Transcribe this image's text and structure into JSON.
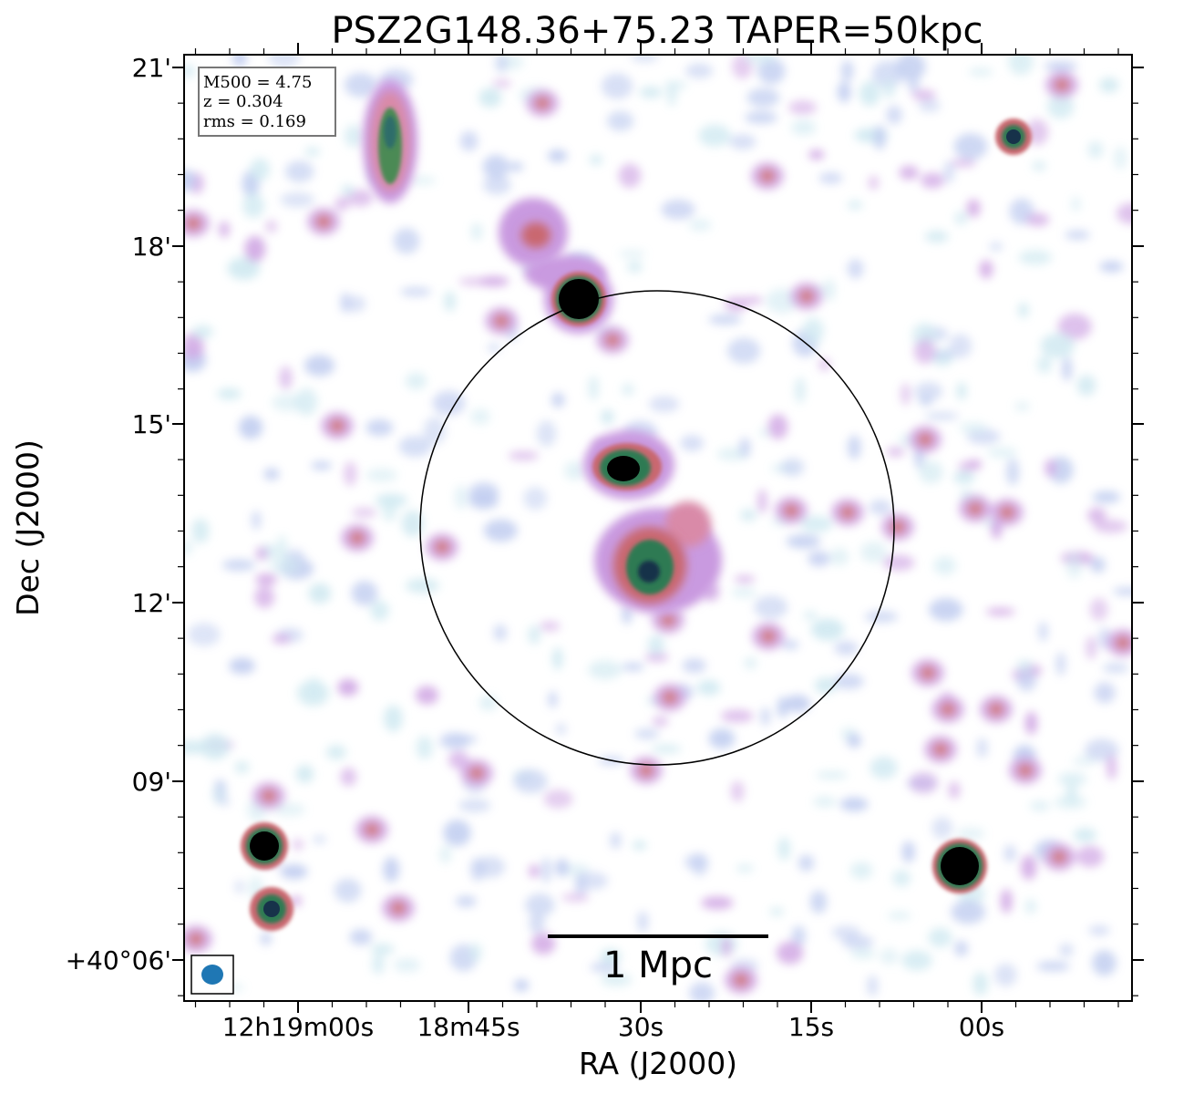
{
  "figure": {
    "title": "PSZ2G148.36+75.23 TAPER=50kpc",
    "xlabel": "RA (J2000)",
    "ylabel": "Dec (J2000)",
    "xticks": [
      "12h19m00s",
      "18m45s",
      "30s",
      "15s",
      "00s"
    ],
    "yticks": [
      "21'",
      "18'",
      "15'",
      "12'",
      "09'",
      "+40°06'"
    ]
  },
  "info_box": {
    "m500": "M500 = 4.75",
    "z": "z = 0.304",
    "rms": "rms = 0.169"
  },
  "scale_bar": {
    "label": "1 Mpc"
  },
  "colors": {
    "faint": "#c9e6ef",
    "low": "#b8c6ee",
    "mid": "#c99ae0",
    "pink": "#d98aa8",
    "red": "#c9686f",
    "green": "#2f7a52",
    "deep": "#17324a",
    "beam": "#1f77b4"
  }
}
